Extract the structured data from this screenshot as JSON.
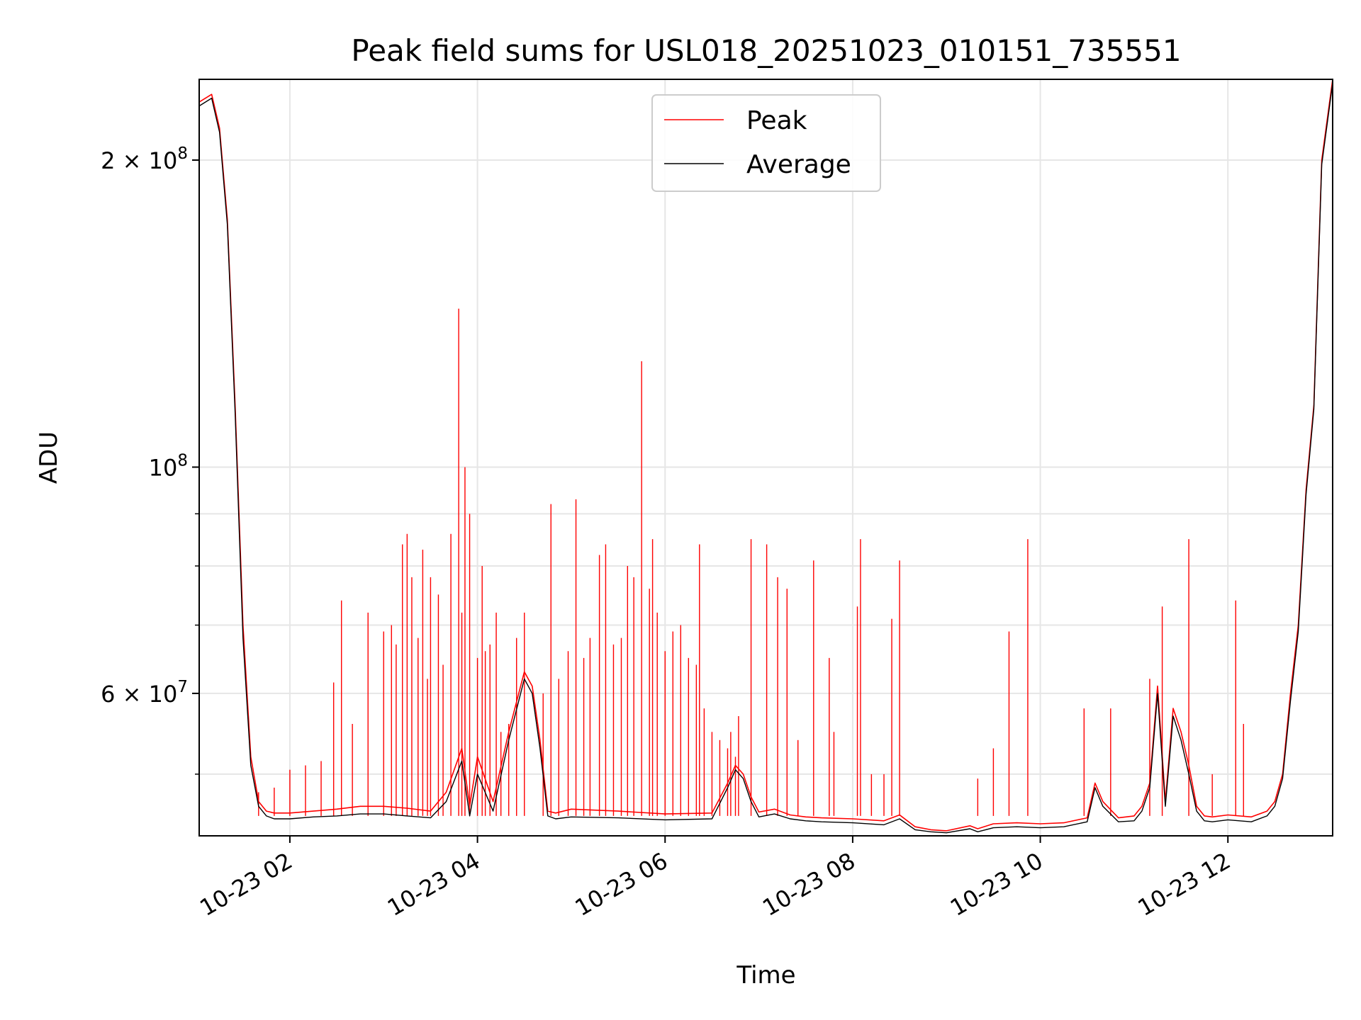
{
  "chart_data": {
    "type": "line",
    "title": "Peak field sums for USL018_20251023_010151_735551",
    "xlabel": "Time",
    "ylabel": "ADU",
    "yscale": "log",
    "grid": true,
    "legend_position": "top-center",
    "xlim": [
      "2025-10-23 01:02",
      "2025-10-23 13:07"
    ],
    "ylim": [
      43500000,
      240000000
    ],
    "x_ticks": [
      {
        "value": "2025-10-23 02:00",
        "label": "10-23 02"
      },
      {
        "value": "2025-10-23 04:00",
        "label": "10-23 04"
      },
      {
        "value": "2025-10-23 06:00",
        "label": "10-23 06"
      },
      {
        "value": "2025-10-23 08:00",
        "label": "10-23 08"
      },
      {
        "value": "2025-10-23 10:00",
        "label": "10-23 10"
      },
      {
        "value": "2025-10-23 12:00",
        "label": "10-23 12"
      }
    ],
    "y_ticks": [
      {
        "value": 200000000,
        "base": "2 × 10",
        "exp": "8"
      },
      {
        "value": 100000000,
        "base": "10",
        "exp": "8"
      },
      {
        "value": 60000000,
        "base": "6 × 10",
        "exp": "7"
      }
    ],
    "y_minor_ticks": [
      50000000,
      70000000,
      80000000,
      90000000
    ],
    "series": [
      {
        "name": "Peak",
        "color": "#ff0000",
        "x": [
          "01:02",
          "01:10",
          "01:15",
          "01:20",
          "01:25",
          "01:30",
          "01:35",
          "01:40",
          "01:45",
          "01:50",
          "02:00",
          "02:15",
          "02:30",
          "02:45",
          "03:00",
          "03:15",
          "03:30",
          "03:40",
          "03:50",
          "03:55",
          "04:00",
          "04:10",
          "04:20",
          "04:30",
          "04:35",
          "04:40",
          "04:45",
          "04:50",
          "05:00",
          "05:30",
          "06:00",
          "06:30",
          "06:40",
          "06:45",
          "06:50",
          "06:55",
          "07:00",
          "07:10",
          "07:20",
          "07:30",
          "07:40",
          "08:00",
          "08:20",
          "08:30",
          "08:40",
          "08:50",
          "09:00",
          "09:15",
          "09:20",
          "09:30",
          "09:45",
          "10:00",
          "10:15",
          "10:30",
          "10:35",
          "10:40",
          "10:50",
          "11:00",
          "11:05",
          "11:10",
          "11:15",
          "11:20",
          "11:25",
          "11:30",
          "11:35",
          "11:40",
          "11:45",
          "11:50",
          "12:00",
          "12:15",
          "12:25",
          "12:30",
          "12:35",
          "12:40",
          "12:45",
          "12:50",
          "12:55",
          "13:00",
          "13:07"
        ],
        "y": [
          228000000,
          232000000,
          215000000,
          175000000,
          115000000,
          70000000,
          52000000,
          47000000,
          46000000,
          45800000,
          45800000,
          46000000,
          46200000,
          46500000,
          46500000,
          46300000,
          46000000,
          48000000,
          53000000,
          46500000,
          52000000,
          47000000,
          55000000,
          63000000,
          61000000,
          54000000,
          46000000,
          45800000,
          46200000,
          46000000,
          45700000,
          45800000,
          49000000,
          51000000,
          50000000,
          47500000,
          45900000,
          46200000,
          45600000,
          45400000,
          45300000,
          45200000,
          45000000,
          45600000,
          44400000,
          44100000,
          44000000,
          44500000,
          44200000,
          44700000,
          44800000,
          44700000,
          44800000,
          45300000,
          49000000,
          47000000,
          45300000,
          45500000,
          46500000,
          49000000,
          61000000,
          47000000,
          58000000,
          55000000,
          51000000,
          46500000,
          45500000,
          45400000,
          45600000,
          45400000,
          46000000,
          47000000,
          50000000,
          60000000,
          70000000,
          95000000,
          115000000,
          200000000,
          240000000
        ]
      },
      {
        "name": "Average",
        "color": "#000000",
        "x": [
          "01:02",
          "01:10",
          "01:15",
          "01:20",
          "01:25",
          "01:30",
          "01:35",
          "01:40",
          "01:45",
          "01:50",
          "02:00",
          "02:15",
          "02:30",
          "02:45",
          "03:00",
          "03:15",
          "03:30",
          "03:40",
          "03:50",
          "03:55",
          "04:00",
          "04:10",
          "04:20",
          "04:30",
          "04:35",
          "04:40",
          "04:45",
          "04:50",
          "05:00",
          "05:30",
          "06:00",
          "06:30",
          "06:40",
          "06:45",
          "06:50",
          "06:55",
          "07:00",
          "07:10",
          "07:20",
          "07:30",
          "07:40",
          "08:00",
          "08:20",
          "08:30",
          "08:40",
          "08:50",
          "09:00",
          "09:15",
          "09:20",
          "09:30",
          "09:45",
          "10:00",
          "10:15",
          "10:30",
          "10:35",
          "10:40",
          "10:50",
          "11:00",
          "11:05",
          "11:10",
          "11:15",
          "11:20",
          "11:25",
          "11:30",
          "11:35",
          "11:40",
          "11:45",
          "11:50",
          "12:00",
          "12:15",
          "12:25",
          "12:30",
          "12:35",
          "12:40",
          "12:45",
          "12:50",
          "12:55",
          "13:00",
          "13:07"
        ],
        "y": [
          226000000,
          230000000,
          213000000,
          173000000,
          113000000,
          68000000,
          51000000,
          46500000,
          45500000,
          45200000,
          45200000,
          45400000,
          45500000,
          45700000,
          45700000,
          45500000,
          45300000,
          47000000,
          51500000,
          45500000,
          50000000,
          46000000,
          54000000,
          62000000,
          60000000,
          53000000,
          45500000,
          45200000,
          45400000,
          45300000,
          45100000,
          45200000,
          48500000,
          50500000,
          49500000,
          47000000,
          45400000,
          45700000,
          45200000,
          45000000,
          44900000,
          44800000,
          44600000,
          45200000,
          44100000,
          43900000,
          43800000,
          44200000,
          43900000,
          44300000,
          44400000,
          44300000,
          44400000,
          44900000,
          48500000,
          46500000,
          44900000,
          45000000,
          46000000,
          48500000,
          60000000,
          46500000,
          57000000,
          54000000,
          50000000,
          46000000,
          45000000,
          44900000,
          45100000,
          44900000,
          45500000,
          46500000,
          49500000,
          59000000,
          69000000,
          94000000,
          114000000,
          198000000,
          238000000
        ]
      }
    ],
    "peak_spikes": [
      {
        "x": "01:40",
        "y": 48000000
      },
      {
        "x": "01:50",
        "y": 48500000
      },
      {
        "x": "02:00",
        "y": 50500000
      },
      {
        "x": "02:10",
        "y": 51000000
      },
      {
        "x": "02:20",
        "y": 51500000
      },
      {
        "x": "02:28",
        "y": 61500000
      },
      {
        "x": "02:33",
        "y": 74000000
      },
      {
        "x": "02:40",
        "y": 56000000
      },
      {
        "x": "02:50",
        "y": 72000000
      },
      {
        "x": "03:00",
        "y": 69000000
      },
      {
        "x": "03:05",
        "y": 70000000
      },
      {
        "x": "03:08",
        "y": 67000000
      },
      {
        "x": "03:12",
        "y": 84000000
      },
      {
        "x": "03:15",
        "y": 86000000
      },
      {
        "x": "03:18",
        "y": 78000000
      },
      {
        "x": "03:22",
        "y": 68000000
      },
      {
        "x": "03:25",
        "y": 83000000
      },
      {
        "x": "03:28",
        "y": 62000000
      },
      {
        "x": "03:30",
        "y": 78000000
      },
      {
        "x": "03:35",
        "y": 75000000
      },
      {
        "x": "03:38",
        "y": 64000000
      },
      {
        "x": "03:43",
        "y": 86000000
      },
      {
        "x": "03:50",
        "y": 72000000
      },
      {
        "x": "03:55",
        "y": 90000000
      },
      {
        "x": "04:00",
        "y": 65000000
      },
      {
        "x": "04:03",
        "y": 80000000
      },
      {
        "x": "04:05",
        "y": 66000000
      },
      {
        "x": "04:08",
        "y": 67000000
      },
      {
        "x": "04:12",
        "y": 72000000
      },
      {
        "x": "04:15",
        "y": 55000000
      },
      {
        "x": "04:20",
        "y": 56000000
      },
      {
        "x": "04:25",
        "y": 68000000
      },
      {
        "x": "04:30",
        "y": 72000000
      },
      {
        "x": "04:42",
        "y": 60000000
      },
      {
        "x": "04:47",
        "y": 92000000
      },
      {
        "x": "04:52",
        "y": 62000000
      },
      {
        "x": "04:58",
        "y": 66000000
      },
      {
        "x": "05:03",
        "y": 93000000
      },
      {
        "x": "05:08",
        "y": 65000000
      },
      {
        "x": "05:12",
        "y": 68000000
      },
      {
        "x": "05:18",
        "y": 82000000
      },
      {
        "x": "05:22",
        "y": 84000000
      },
      {
        "x": "05:27",
        "y": 67000000
      },
      {
        "x": "05:32",
        "y": 68000000
      },
      {
        "x": "05:36",
        "y": 80000000
      },
      {
        "x": "05:40",
        "y": 78000000
      },
      {
        "x": "05:45",
        "y": 127000000
      },
      {
        "x": "05:50",
        "y": 76000000
      },
      {
        "x": "05:55",
        "y": 72000000
      },
      {
        "x": "06:00",
        "y": 66000000
      },
      {
        "x": "06:05",
        "y": 69000000
      },
      {
        "x": "06:10",
        "y": 70000000
      },
      {
        "x": "06:15",
        "y": 65000000
      },
      {
        "x": "06:20",
        "y": 64000000
      },
      {
        "x": "06:25",
        "y": 58000000
      },
      {
        "x": "06:30",
        "y": 55000000
      },
      {
        "x": "06:35",
        "y": 54000000
      },
      {
        "x": "06:40",
        "y": 53000000
      },
      {
        "x": "06:42",
        "y": 55000000
      },
      {
        "x": "06:45",
        "y": 52000000
      },
      {
        "x": "06:47",
        "y": 57000000
      },
      {
        "x": "07:12",
        "y": 78000000
      },
      {
        "x": "07:18",
        "y": 76000000
      },
      {
        "x": "07:25",
        "y": 54000000
      },
      {
        "x": "07:35",
        "y": 81000000
      },
      {
        "x": "07:45",
        "y": 65000000
      },
      {
        "x": "07:48",
        "y": 55000000
      },
      {
        "x": "08:03",
        "y": 73000000
      },
      {
        "x": "08:05",
        "y": 85000000
      },
      {
        "x": "08:12",
        "y": 50000000
      },
      {
        "x": "08:20",
        "y": 50000000
      },
      {
        "x": "08:25",
        "y": 71000000
      },
      {
        "x": "09:20",
        "y": 49500000
      },
      {
        "x": "09:30",
        "y": 53000000
      },
      {
        "x": "10:45",
        "y": 58000000
      },
      {
        "x": "11:10",
        "y": 62000000
      },
      {
        "x": "11:35",
        "y": 85000000
      },
      {
        "x": "11:50",
        "y": 50000000
      },
      {
        "x": "12:05",
        "y": 74000000
      },
      {
        "x": "12:10",
        "y": 56000000
      },
      {
        "x": "03:48",
        "y": 143000000
      },
      {
        "x": "03:52",
        "y": 100000000
      },
      {
        "x": "05:52",
        "y": 85000000
      },
      {
        "x": "06:22",
        "y": 84000000
      },
      {
        "x": "06:55",
        "y": 85000000
      },
      {
        "x": "07:05",
        "y": 84000000
      },
      {
        "x": "08:30",
        "y": 81000000
      },
      {
        "x": "09:52",
        "y": 85000000
      },
      {
        "x": "11:18",
        "y": 73000000
      },
      {
        "x": "09:40",
        "y": 69000000
      },
      {
        "x": "10:28",
        "y": 58000000
      }
    ]
  }
}
